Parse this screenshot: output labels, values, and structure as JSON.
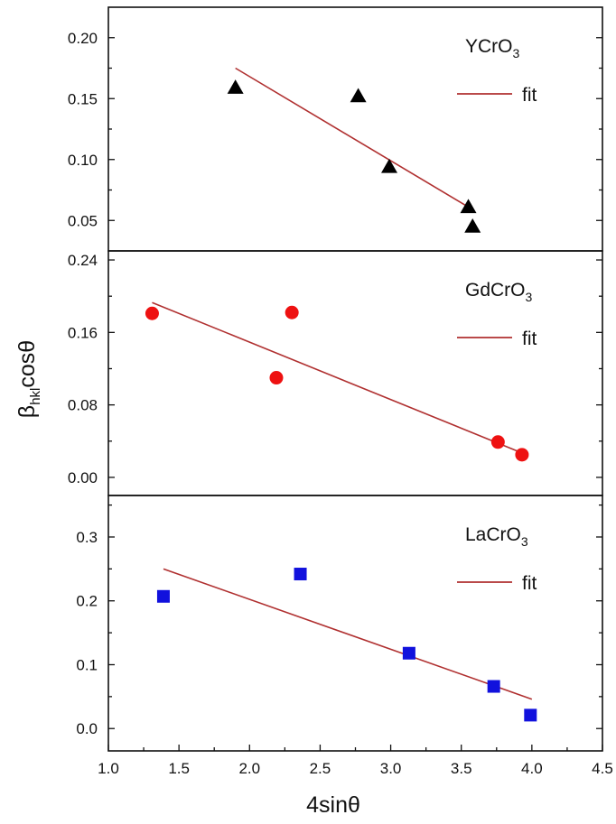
{
  "figure": {
    "xlabel": "4sinθ",
    "ylabel_main": "β",
    "ylabel_sub": "hkl",
    "ylabel_rest": "cosθ"
  },
  "chart_data": {
    "type": "scatter",
    "xlabel": "4sinθ",
    "ylabel": "β_hkl cosθ",
    "xlim": [
      1.0,
      4.5
    ],
    "xticks": [
      "1.0",
      "1.5",
      "2.0",
      "2.5",
      "3.0",
      "3.5",
      "4.0",
      "4.5"
    ],
    "panels": [
      {
        "label_main": "YCrO",
        "label_sub": "3",
        "legend_fit": "fit",
        "ylim": [
          0.025,
          0.225
        ],
        "yticks": [
          "0.05",
          "0.10",
          "0.15",
          "0.20"
        ],
        "marker": "triangle",
        "marker_color": "#000000",
        "line_color": "#b03030",
        "points": [
          {
            "x": 1.9,
            "y": 0.159
          },
          {
            "x": 2.77,
            "y": 0.152
          },
          {
            "x": 2.99,
            "y": 0.094
          },
          {
            "x": 3.55,
            "y": 0.061
          },
          {
            "x": 3.58,
            "y": 0.045
          }
        ],
        "fit": {
          "x": [
            1.9,
            3.55
          ],
          "y": [
            0.175,
            0.061
          ]
        }
      },
      {
        "label_main": "GdCrO",
        "label_sub": "3",
        "legend_fit": "fit",
        "ylim": [
          -0.02,
          0.25
        ],
        "yticks": [
          "0.00",
          "0.08",
          "0.16",
          "0.24"
        ],
        "marker": "circle",
        "marker_color": "#ee1111",
        "line_color": "#b03030",
        "points": [
          {
            "x": 1.31,
            "y": 0.181
          },
          {
            "x": 2.19,
            "y": 0.11
          },
          {
            "x": 2.3,
            "y": 0.182
          },
          {
            "x": 3.76,
            "y": 0.039
          },
          {
            "x": 3.93,
            "y": 0.025
          }
        ],
        "fit": {
          "x": [
            1.31,
            3.93
          ],
          "y": [
            0.193,
            0.027
          ]
        }
      },
      {
        "label_main": "LaCrO",
        "label_sub": "3",
        "legend_fit": "fit",
        "ylim": [
          -0.035,
          0.365
        ],
        "yticks": [
          "0.0",
          "0.1",
          "0.2",
          "0.3"
        ],
        "marker": "square",
        "marker_color": "#1111dd",
        "line_color": "#b03030",
        "points": [
          {
            "x": 1.39,
            "y": 0.207
          },
          {
            "x": 2.36,
            "y": 0.242
          },
          {
            "x": 3.13,
            "y": 0.118
          },
          {
            "x": 3.73,
            "y": 0.066
          },
          {
            "x": 3.99,
            "y": 0.021
          }
        ],
        "fit": {
          "x": [
            1.39,
            4.0
          ],
          "y": [
            0.25,
            0.046
          ]
        }
      }
    ]
  }
}
